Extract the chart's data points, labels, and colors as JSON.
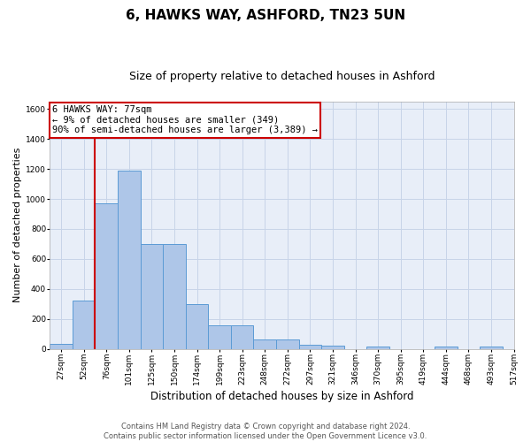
{
  "title": "6, HAWKS WAY, ASHFORD, TN23 5UN",
  "subtitle": "Size of property relative to detached houses in Ashford",
  "xlabel": "Distribution of detached houses by size in Ashford",
  "ylabel": "Number of detached properties",
  "bar_values": [
    30,
    320,
    970,
    1190,
    700,
    700,
    300,
    155,
    155,
    65,
    65,
    25,
    20,
    0,
    15,
    0,
    0,
    15,
    0,
    15
  ],
  "bar_labels": [
    "27sqm",
    "52sqm",
    "76sqm",
    "101sqm",
    "125sqm",
    "150sqm",
    "174sqm",
    "199sqm",
    "223sqm",
    "248sqm",
    "272sqm",
    "297sqm",
    "321sqm",
    "346sqm",
    "370sqm",
    "395sqm",
    "419sqm",
    "444sqm",
    "468sqm",
    "493sqm",
    "517sqm"
  ],
  "bar_color": "#aec6e8",
  "bar_edge_color": "#5b9bd5",
  "grid_color": "#c8d4e8",
  "bg_color": "#e8eef8",
  "vline_x_bar_idx": 2,
  "vline_color": "#cc0000",
  "annotation_line1": "6 HAWKS WAY: 77sqm",
  "annotation_line2": "← 9% of detached houses are smaller (349)",
  "annotation_line3": "90% of semi-detached houses are larger (3,389) →",
  "annotation_box_color": "#cc0000",
  "ylim": [
    0,
    1650
  ],
  "yticks": [
    0,
    200,
    400,
    600,
    800,
    1000,
    1200,
    1400,
    1600
  ],
  "footer_text": "Contains HM Land Registry data © Crown copyright and database right 2024.\nContains public sector information licensed under the Open Government Licence v3.0.",
  "title_fontsize": 11,
  "subtitle_fontsize": 9,
  "ylabel_fontsize": 8,
  "xlabel_fontsize": 8.5,
  "annotation_fontsize": 7.5,
  "tick_fontsize": 6.5,
  "footer_fontsize": 6
}
